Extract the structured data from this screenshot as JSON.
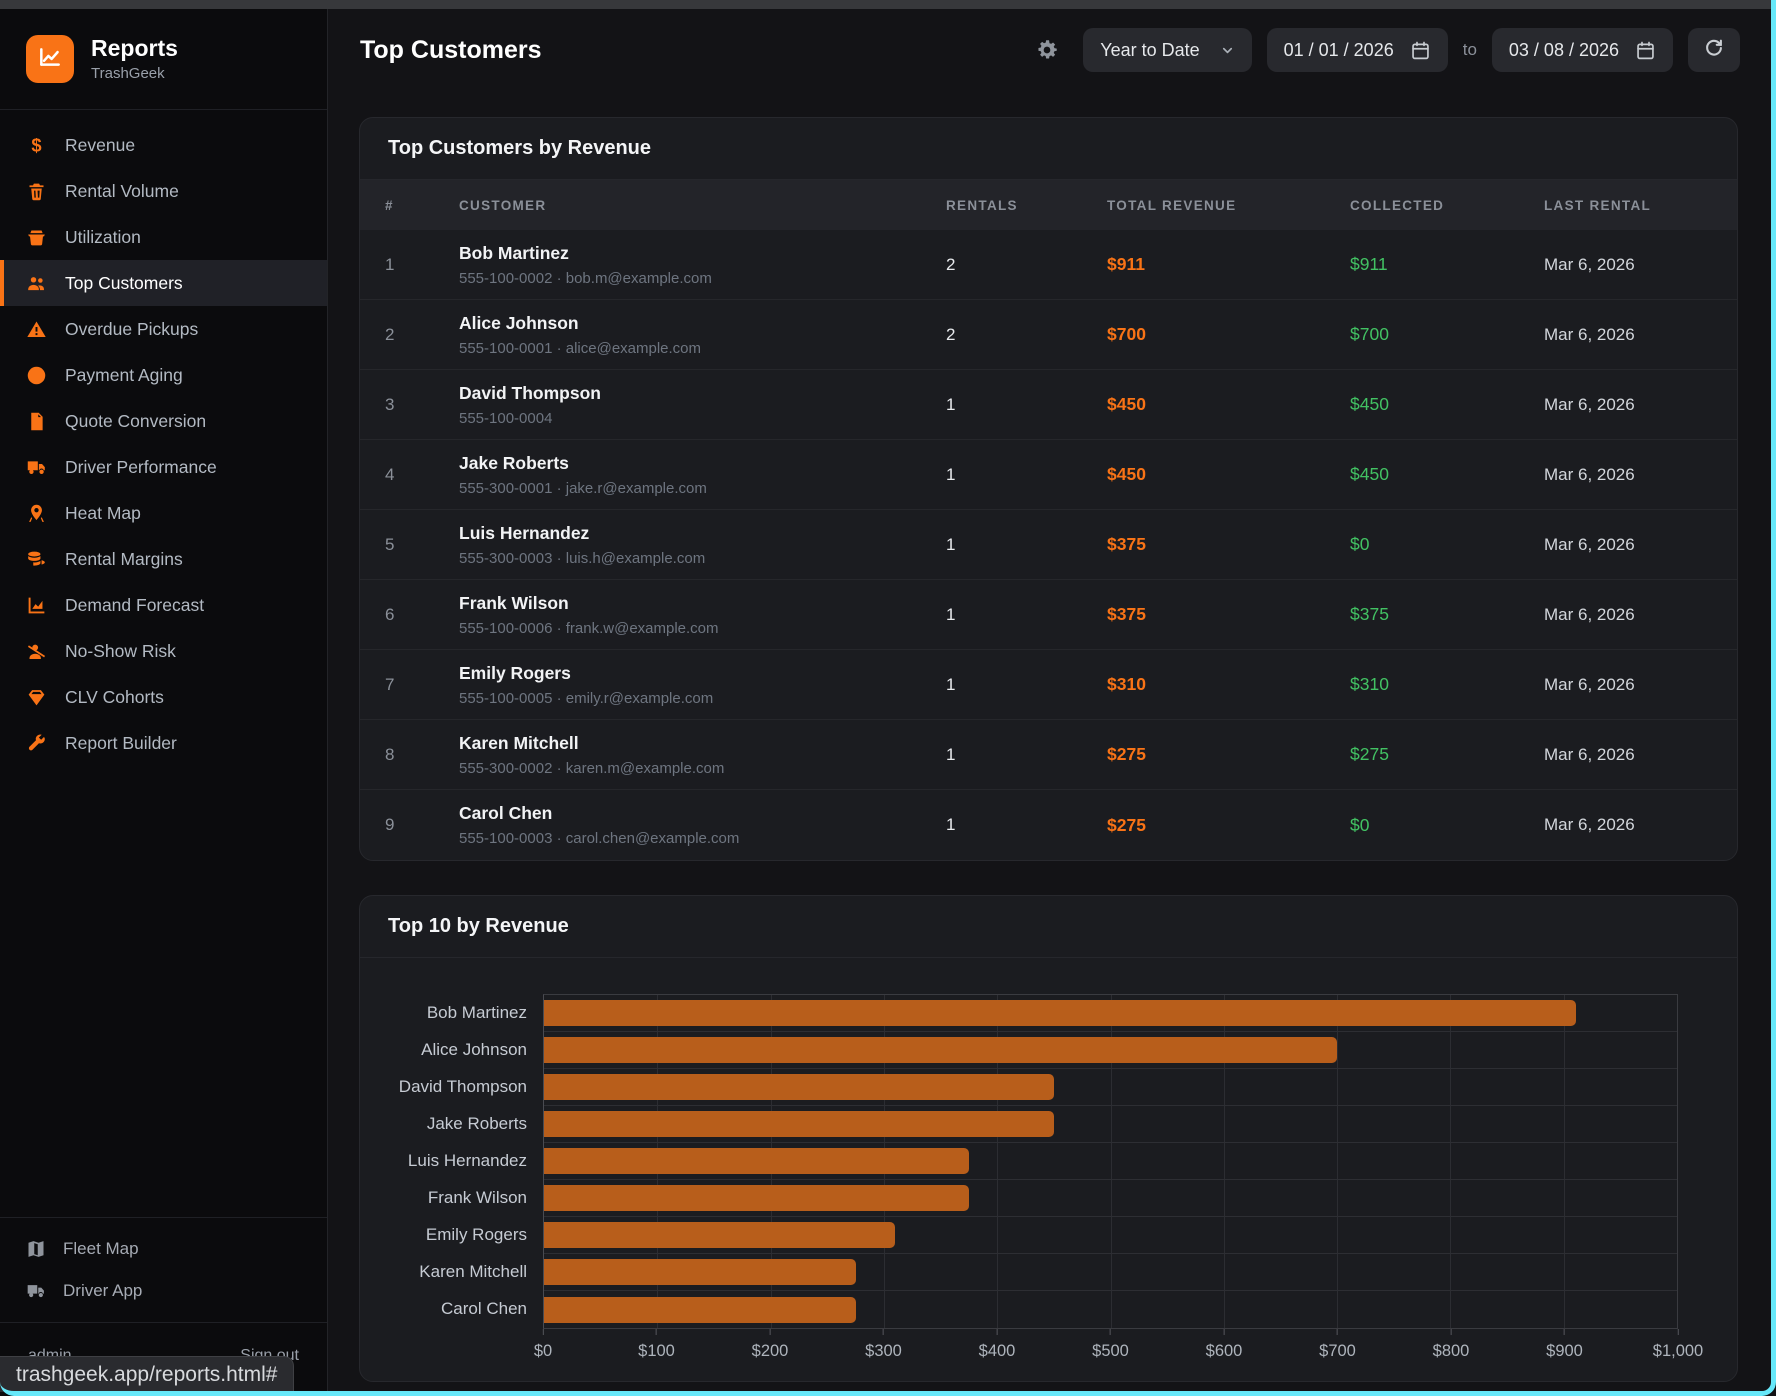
{
  "app": {
    "name": "Reports",
    "company": "TrashGeek"
  },
  "sidebar": {
    "items": [
      {
        "id": "revenue",
        "label": "Revenue",
        "icon": "dollar",
        "active": false
      },
      {
        "id": "rental-volume",
        "label": "Rental Volume",
        "icon": "trash",
        "active": false
      },
      {
        "id": "utilization",
        "label": "Utilization",
        "icon": "dumpster",
        "active": false
      },
      {
        "id": "top-customers",
        "label": "Top Customers",
        "icon": "users",
        "active": true
      },
      {
        "id": "overdue-pickups",
        "label": "Overdue Pickups",
        "icon": "warning",
        "active": false
      },
      {
        "id": "payment-aging",
        "label": "Payment Aging",
        "icon": "clock",
        "active": false
      },
      {
        "id": "quote-conversion",
        "label": "Quote Conversion",
        "icon": "document",
        "active": false
      },
      {
        "id": "driver-performance",
        "label": "Driver Performance",
        "icon": "truck",
        "active": false
      },
      {
        "id": "heat-map",
        "label": "Heat Map",
        "icon": "map-pin",
        "active": false
      },
      {
        "id": "rental-margins",
        "label": "Rental Margins",
        "icon": "coins",
        "active": false
      },
      {
        "id": "demand-forecast",
        "label": "Demand Forecast",
        "icon": "chart-area",
        "active": false
      },
      {
        "id": "no-show-risk",
        "label": "No-Show Risk",
        "icon": "user-slash",
        "active": false
      },
      {
        "id": "clv-cohorts",
        "label": "CLV Cohorts",
        "icon": "gem",
        "active": false
      },
      {
        "id": "report-builder",
        "label": "Report Builder",
        "icon": "wrench",
        "active": false
      }
    ],
    "secondary": [
      {
        "id": "fleet-map",
        "label": "Fleet Map",
        "icon": "map"
      },
      {
        "id": "driver-app",
        "label": "Driver App",
        "icon": "truck"
      }
    ],
    "footer": {
      "user": "admin",
      "signout": "Sign out"
    }
  },
  "header": {
    "title": "Top Customers",
    "period": "Year to Date",
    "date_from": "01 / 01 / 2026",
    "to_label": "to",
    "date_to": "03 / 08 / 2026"
  },
  "table_card": {
    "title": "Top Customers by Revenue",
    "columns": [
      "#",
      "CUSTOMER",
      "RENTALS",
      "TOTAL REVENUE",
      "COLLECTED",
      "LAST RENTAL"
    ],
    "rows": [
      {
        "rank": "1",
        "name": "Bob Martinez",
        "contact": "555-100-0002 · bob.m@example.com",
        "rentals": "2",
        "revenue": "$911",
        "collected": "$911",
        "last_rental": "Mar 6, 2026"
      },
      {
        "rank": "2",
        "name": "Alice Johnson",
        "contact": "555-100-0001 · alice@example.com",
        "rentals": "2",
        "revenue": "$700",
        "collected": "$700",
        "last_rental": "Mar 6, 2026"
      },
      {
        "rank": "3",
        "name": "David Thompson",
        "contact": "555-100-0004",
        "rentals": "1",
        "revenue": "$450",
        "collected": "$450",
        "last_rental": "Mar 6, 2026"
      },
      {
        "rank": "4",
        "name": "Jake Roberts",
        "contact": "555-300-0001 · jake.r@example.com",
        "rentals": "1",
        "revenue": "$450",
        "collected": "$450",
        "last_rental": "Mar 6, 2026"
      },
      {
        "rank": "5",
        "name": "Luis Hernandez",
        "contact": "555-300-0003 · luis.h@example.com",
        "rentals": "1",
        "revenue": "$375",
        "collected": "$0",
        "last_rental": "Mar 6, 2026"
      },
      {
        "rank": "6",
        "name": "Frank Wilson",
        "contact": "555-100-0006 · frank.w@example.com",
        "rentals": "1",
        "revenue": "$375",
        "collected": "$375",
        "last_rental": "Mar 6, 2026"
      },
      {
        "rank": "7",
        "name": "Emily Rogers",
        "contact": "555-100-0005 · emily.r@example.com",
        "rentals": "1",
        "revenue": "$310",
        "collected": "$310",
        "last_rental": "Mar 6, 2026"
      },
      {
        "rank": "8",
        "name": "Karen Mitchell",
        "contact": "555-300-0002 · karen.m@example.com",
        "rentals": "1",
        "revenue": "$275",
        "collected": "$275",
        "last_rental": "Mar 6, 2026"
      },
      {
        "rank": "9",
        "name": "Carol Chen",
        "contact": "555-100-0003 · carol.chen@example.com",
        "rentals": "1",
        "revenue": "$275",
        "collected": "$0",
        "last_rental": "Mar 6, 2026"
      }
    ]
  },
  "chart_card": {
    "title": "Top 10 by Revenue"
  },
  "chart_data": {
    "type": "bar",
    "orientation": "horizontal",
    "title": "Top 10 by Revenue",
    "categories": [
      "Bob Martinez",
      "Alice Johnson",
      "David Thompson",
      "Jake Roberts",
      "Luis Hernandez",
      "Frank Wilson",
      "Emily Rogers",
      "Karen Mitchell",
      "Carol Chen"
    ],
    "values": [
      911,
      700,
      450,
      450,
      375,
      375,
      310,
      275,
      275
    ],
    "xlim": [
      0,
      1000
    ],
    "x_tick_labels": [
      "$0",
      "$100",
      "$200",
      "$300",
      "$400",
      "$500",
      "$600",
      "$700",
      "$800",
      "$900",
      "$1,000"
    ],
    "grid": true,
    "bar_color": "#b85e1b"
  },
  "statusbar": {
    "url": "trashgeek.app/reports.html#"
  },
  "colors": {
    "accent_orange": "#f97316",
    "bar_orange": "#b85e1b",
    "money_green": "#42c263",
    "capture_frame_cyan": "#67e8f9"
  }
}
